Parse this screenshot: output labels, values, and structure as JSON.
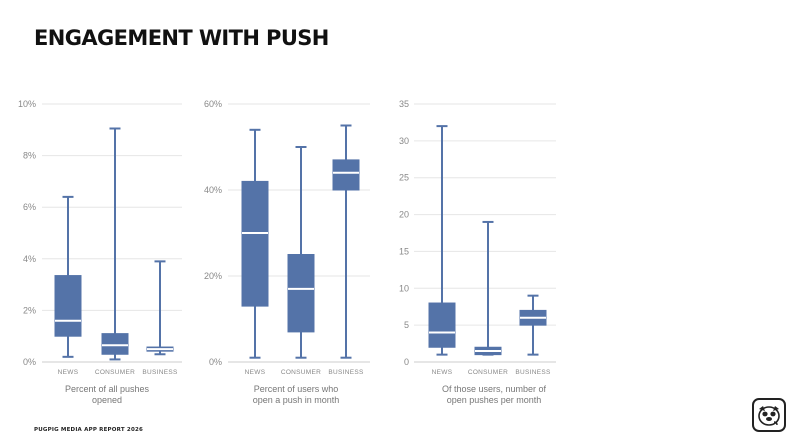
{
  "page": {
    "title": "ENGAGEMENT WITH PUSH",
    "footer": "PUGPIG MEDIA APP REPORT 2026",
    "logo_icon": "pug-icon"
  },
  "colors": {
    "box": "#5473a8",
    "median": "#ffffff",
    "grid": "#e6e6e6",
    "axis": "#cccccc"
  },
  "chart_data": [
    {
      "type": "boxplot",
      "caption": [
        "Percent of all pushes",
        "opened"
      ],
      "ylim": [
        0,
        10
      ],
      "yticks": [
        0,
        2,
        4,
        6,
        8,
        10
      ],
      "ytick_labels": [
        "0%",
        "2%",
        "4%",
        "6%",
        "8%",
        "10%"
      ],
      "categories": [
        "NEWS",
        "CONSUMER",
        "BUSINESS"
      ],
      "boxes": [
        {
          "min": 0.2,
          "q1": 1.0,
          "median": 1.6,
          "q3": 3.35,
          "max": 6.4
        },
        {
          "min": 0.1,
          "q1": 0.3,
          "median": 0.65,
          "q3": 1.1,
          "max": 9.05
        },
        {
          "min": 0.3,
          "q1": 0.42,
          "median": 0.5,
          "q3": 0.58,
          "max": 3.9
        }
      ]
    },
    {
      "type": "boxplot",
      "caption": [
        "Percent of users who",
        "open a push in month"
      ],
      "ylim": [
        0,
        60
      ],
      "yticks": [
        0,
        20,
        40,
        60
      ],
      "ytick_labels": [
        "0%",
        "20%",
        "40%",
        "60%"
      ],
      "categories": [
        "NEWS",
        "CONSUMER",
        "BUSINESS"
      ],
      "boxes": [
        {
          "min": 1,
          "q1": 13,
          "median": 30,
          "q3": 42,
          "max": 54
        },
        {
          "min": 1,
          "q1": 7,
          "median": 17,
          "q3": 25,
          "max": 50
        },
        {
          "min": 1,
          "q1": 40,
          "median": 44,
          "q3": 47,
          "max": 55
        }
      ]
    },
    {
      "type": "boxplot",
      "caption": [
        "Of those users, number of",
        "open pushes per month"
      ],
      "ylim": [
        0,
        35
      ],
      "yticks": [
        0,
        5,
        10,
        15,
        20,
        25,
        30,
        35
      ],
      "ytick_labels": [
        "0",
        "5",
        "10",
        "15",
        "20",
        "25",
        "30",
        "35"
      ],
      "categories": [
        "NEWS",
        "CONSUMER",
        "BUSINESS"
      ],
      "boxes": [
        {
          "min": 1,
          "q1": 2,
          "median": 4,
          "q3": 8,
          "max": 32
        },
        {
          "min": 1,
          "q1": 1,
          "median": 1.5,
          "q3": 2,
          "max": 19
        },
        {
          "min": 1,
          "q1": 5,
          "median": 6,
          "q3": 7,
          "max": 9
        }
      ]
    }
  ]
}
